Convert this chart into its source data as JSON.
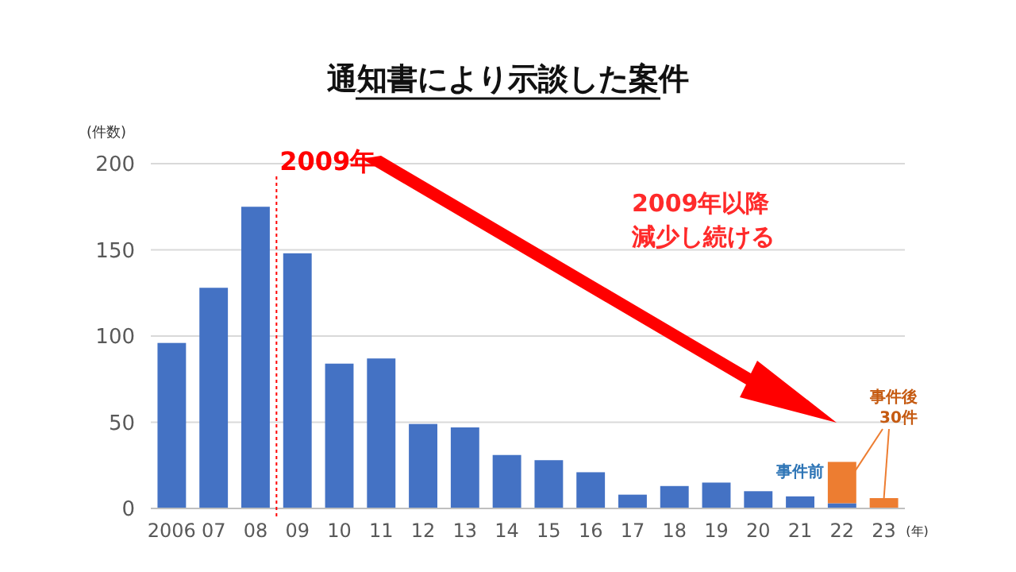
{
  "chart_data": {
    "type": "bar",
    "title": "通知書により示談した案件",
    "ylabel": "(件数)",
    "xlabel": "(年)",
    "categories": [
      "2006",
      "07",
      "08",
      "09",
      "10",
      "11",
      "12",
      "13",
      "14",
      "15",
      "16",
      "17",
      "18",
      "19",
      "20",
      "21",
      "22",
      "23"
    ],
    "stacked": true,
    "series": [
      {
        "color": "#4472c4",
        "values": [
          96,
          128,
          175,
          148,
          84,
          87,
          49,
          47,
          31,
          28,
          21,
          8,
          13,
          15,
          10,
          7,
          3,
          0
        ]
      },
      {
        "color": "#ed7d31",
        "values": [
          null,
          null,
          null,
          null,
          null,
          null,
          null,
          null,
          null,
          null,
          null,
          null,
          null,
          null,
          null,
          null,
          24,
          6
        ]
      }
    ],
    "ylim": [
      0,
      200
    ],
    "yticks": [
      0,
      50,
      100,
      150,
      200
    ],
    "grid": "y",
    "ref_lines": [
      {
        "axis": "x",
        "value": "09",
        "label": "2009年",
        "color": "#ff0000",
        "line_style": "dotted"
      }
    ],
    "annotations": [
      "2009年以降",
      "減少し続ける",
      "事件前",
      "事件後",
      {
        "text": "30件",
        "x": "23",
        "y": 6
      }
    ]
  }
}
